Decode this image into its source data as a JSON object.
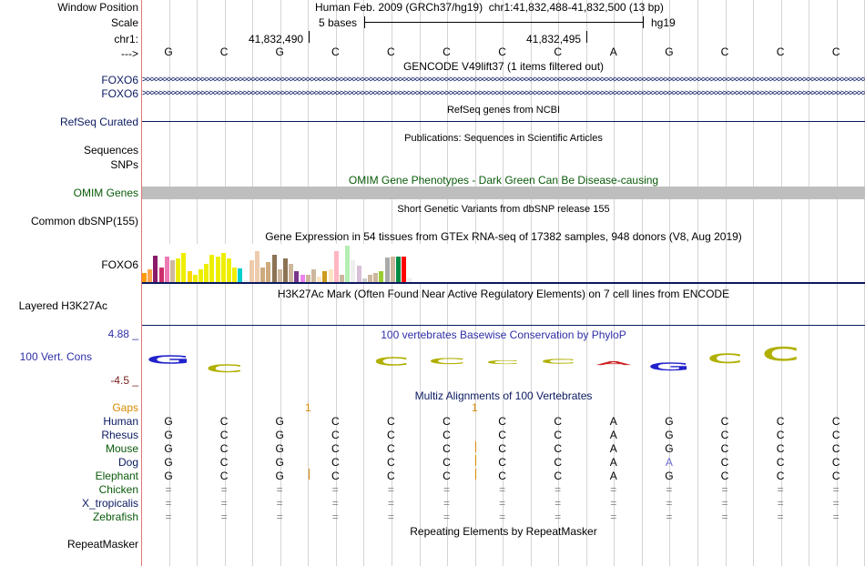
{
  "labels": {
    "window_position": "Window Position",
    "scale": "Scale",
    "chrom": "chr1:",
    "strand": "--->",
    "foxo6_a": "FOXO6",
    "foxo6_b": "FOXO6",
    "refseq": "RefSeq Curated",
    "sequences": "Sequences",
    "snps": "SNPs",
    "omim": "OMIM Genes",
    "common_dbsnp": "Common dbSNP(155)",
    "foxo6_gtex": "FOXO6",
    "h3k27ac": "Layered H3K27Ac",
    "phylop_max": "4.88 _",
    "vert_cons": "100 Vert. Cons",
    "phylop_min": "-4.5 _",
    "gaps": "Gaps",
    "repeatmasker": "RepeatMasker"
  },
  "colors": {
    "dark_blue": "#0b1a60",
    "omim_green": "#0a5a0a",
    "conservation_blue": "#2f2fa8",
    "gaps_orange": "#d98a00",
    "phylop_red": "#7a2020",
    "gray_bar": "#bebebe",
    "divider": "#e07878",
    "grid": "#d4d4d4"
  },
  "header": {
    "assembly": "Human Feb. 2009 (GRCh37/hg19)",
    "position": "chr1:41,832,488-41,832,500 (13 bp)",
    "scale_text": "5 bases",
    "scale_db": "hg19",
    "coord1": "41,832,490",
    "coord2": "41,832,495"
  },
  "sequence": [
    "G",
    "C",
    "G",
    "C",
    "C",
    "C",
    "C",
    "C",
    "A",
    "G",
    "C",
    "C",
    "C"
  ],
  "tracks": {
    "gencode_title": "GENCODE V49lift37 (1 items filtered out)",
    "refseq_title": "RefSeq genes from NCBI",
    "publications_title": "Publications: Sequences in Scientific Articles",
    "omim_title": "OMIM Gene Phenotypes - Dark Green Can Be Disease-causing",
    "dbsnp_title": "Short Genetic Variants from dbSNP release 155",
    "gtex_title": "Gene Expression in 54 tissues from GTEx RNA-seq of 17382 samples, 948 donors (V8, Aug 2019)",
    "h3k27ac_title": "H3K27Ac Mark (Often Found Near Active Regulatory Elements) on 7 cell lines from ENCODE",
    "phylop_title": "100 vertebrates Basewise Conservation by PhyloP",
    "multiz_title": "Multiz Alignments of 100 Vertebrates",
    "repeat_title": "Repeating Elements by RepeatMasker"
  },
  "gaps_marks": [
    "1",
    "1"
  ],
  "gtex_bars": [
    {
      "color": "#ff9a00",
      "v": 0.25
    },
    {
      "color": "#ffa54f",
      "v": 0.35
    },
    {
      "color": "#8b1a6b",
      "v": 0.72
    },
    {
      "color": "#cd2e6b",
      "v": 0.4
    },
    {
      "color": "#ee7ab4",
      "v": 0.7
    },
    {
      "color": "#cdb79e",
      "v": 0.6
    },
    {
      "color": "#eeee00",
      "v": 0.65
    },
    {
      "color": "#eeee00",
      "v": 0.8
    },
    {
      "color": "#ffd700",
      "v": 0.3
    },
    {
      "color": "#eeee00",
      "v": 0.2
    },
    {
      "color": "#eeee00",
      "v": 0.35
    },
    {
      "color": "#eeee00",
      "v": 0.5
    },
    {
      "color": "#eeee00",
      "v": 0.75
    },
    {
      "color": "#eeee00",
      "v": 0.7
    },
    {
      "color": "#eeee00",
      "v": 0.8
    },
    {
      "color": "#eeee00",
      "v": 0.65
    },
    {
      "color": "#eeee00",
      "v": 0.4
    },
    {
      "color": "#00cdcd",
      "v": 0.38
    },
    {
      "color": "#eeeeee",
      "v": 0.05
    },
    {
      "color": "#eecbad",
      "v": 0.6
    },
    {
      "color": "#eecbad",
      "v": 0.85
    },
    {
      "color": "#cdaa7d",
      "v": 0.4
    },
    {
      "color": "#cdaa7d",
      "v": 0.55
    },
    {
      "color": "#8b7355",
      "v": 0.75
    },
    {
      "color": "#cdb79e",
      "v": 0.35
    },
    {
      "color": "#8b7355",
      "v": 0.65
    },
    {
      "color": "#cdb79e",
      "v": 0.5
    },
    {
      "color": "#7a378b",
      "v": 0.3
    },
    {
      "color": "#ee82ee",
      "v": 0.2
    },
    {
      "color": "#cdb79e",
      "v": 0.2
    },
    {
      "color": "#cdb79e",
      "v": 0.35
    },
    {
      "color": "#ffe4c4",
      "v": 0.15
    },
    {
      "color": "#cd9b1d",
      "v": 0.3
    },
    {
      "color": "#ffe4c4",
      "v": 0.35
    },
    {
      "color": "#ffb6c1",
      "v": 0.85
    },
    {
      "color": "#cdb79e",
      "v": 0.2
    },
    {
      "color": "#b4eeb4",
      "v": 1.0
    },
    {
      "color": "#eeeeee",
      "v": 0.6
    },
    {
      "color": "#d8bfd8",
      "v": 0.45
    },
    {
      "color": "#cdcdcd",
      "v": 0.1
    },
    {
      "color": "#cdb79e",
      "v": 0.2
    },
    {
      "color": "#cdb79e",
      "v": 0.25
    },
    {
      "color": "#9acd32",
      "v": 0.3
    },
    {
      "color": "#aaaaaa",
      "v": 0.68
    },
    {
      "color": "#cdb79e",
      "v": 0.7
    },
    {
      "color": "#008b45",
      "v": 0.7
    },
    {
      "color": "#ff0000",
      "v": 0.7
    },
    {
      "color": "#eeeeee",
      "v": 0.1
    }
  ],
  "phylop_letters": [
    {
      "letter": "G",
      "color": "#2222cc",
      "w": 44,
      "h": 9,
      "off": -2
    },
    {
      "letter": "C",
      "color": "#b0b000",
      "w": 40,
      "h": 8,
      "off": 8
    },
    {
      "letter": "C",
      "color": "#b0b000",
      "w": 38,
      "h": 9,
      "off": 0
    },
    {
      "letter": "C",
      "color": "#b0b000",
      "w": 40,
      "h": 6,
      "off": 0
    },
    {
      "letter": "C",
      "color": "#b0b000",
      "w": 36,
      "h": 4,
      "off": 1
    },
    {
      "letter": "C",
      "color": "#b0b000",
      "w": 38,
      "h": 5,
      "off": 0
    },
    {
      "letter": "A",
      "color": "#cc2222",
      "w": 38,
      "h": 4,
      "off": 2
    },
    {
      "letter": "G",
      "color": "#2222cc",
      "w": 42,
      "h": 8,
      "off": 6
    },
    {
      "letter": "C",
      "color": "#b0b000",
      "w": 38,
      "h": 10,
      "off": -3
    },
    {
      "letter": "C",
      "color": "#b0b000",
      "w": 40,
      "h": 14,
      "off": -8
    }
  ],
  "multiz": [
    {
      "species": "Human",
      "color": "#0b1a60",
      "bases": [
        "G",
        "C",
        "G",
        "C",
        "C",
        "C",
        "C",
        "C",
        "A",
        "G",
        "C",
        "C",
        "C"
      ]
    },
    {
      "species": "Rhesus",
      "color": "#0b1a60",
      "bases": [
        "G",
        "C",
        "G",
        "C",
        "C",
        "C",
        "C",
        "C",
        "A",
        "G",
        "C",
        "C",
        "C"
      ]
    },
    {
      "species": "Mouse",
      "color": "#0a5a0a",
      "bases": [
        "G",
        "C",
        "G",
        "C",
        "C",
        "C",
        "C",
        "C",
        "A",
        "G",
        "C",
        "C",
        "C"
      ]
    },
    {
      "species": "Dog",
      "color": "#0b1a60",
      "bases": [
        "G",
        "C",
        "G",
        "C",
        "C",
        "C",
        "C",
        "C",
        "A",
        "A",
        "C",
        "C",
        "C"
      ]
    },
    {
      "species": "Elephant",
      "color": "#0a5a0a",
      "bases": [
        "G",
        "C",
        "G",
        "C",
        "C",
        "C",
        "C",
        "C",
        "A",
        "G",
        "C",
        "C",
        "C"
      ]
    },
    {
      "species": "Chicken",
      "color": "#0a5a0a",
      "bases": [
        "=",
        "=",
        "=",
        "=",
        "=",
        "=",
        "=",
        "=",
        "=",
        "=",
        "=",
        "=",
        "="
      ]
    },
    {
      "species": "X_tropicalis",
      "color": "#0b1a60",
      "bases": [
        "=",
        "=",
        "=",
        "=",
        "=",
        "=",
        "=",
        "=",
        "=",
        "=",
        "=",
        "=",
        "="
      ]
    },
    {
      "species": "Zebrafish",
      "color": "#0a5a0a",
      "bases": [
        "=",
        "=",
        "=",
        "=",
        "=",
        "=",
        "=",
        "=",
        "=",
        "=",
        "=",
        "=",
        "="
      ]
    }
  ]
}
